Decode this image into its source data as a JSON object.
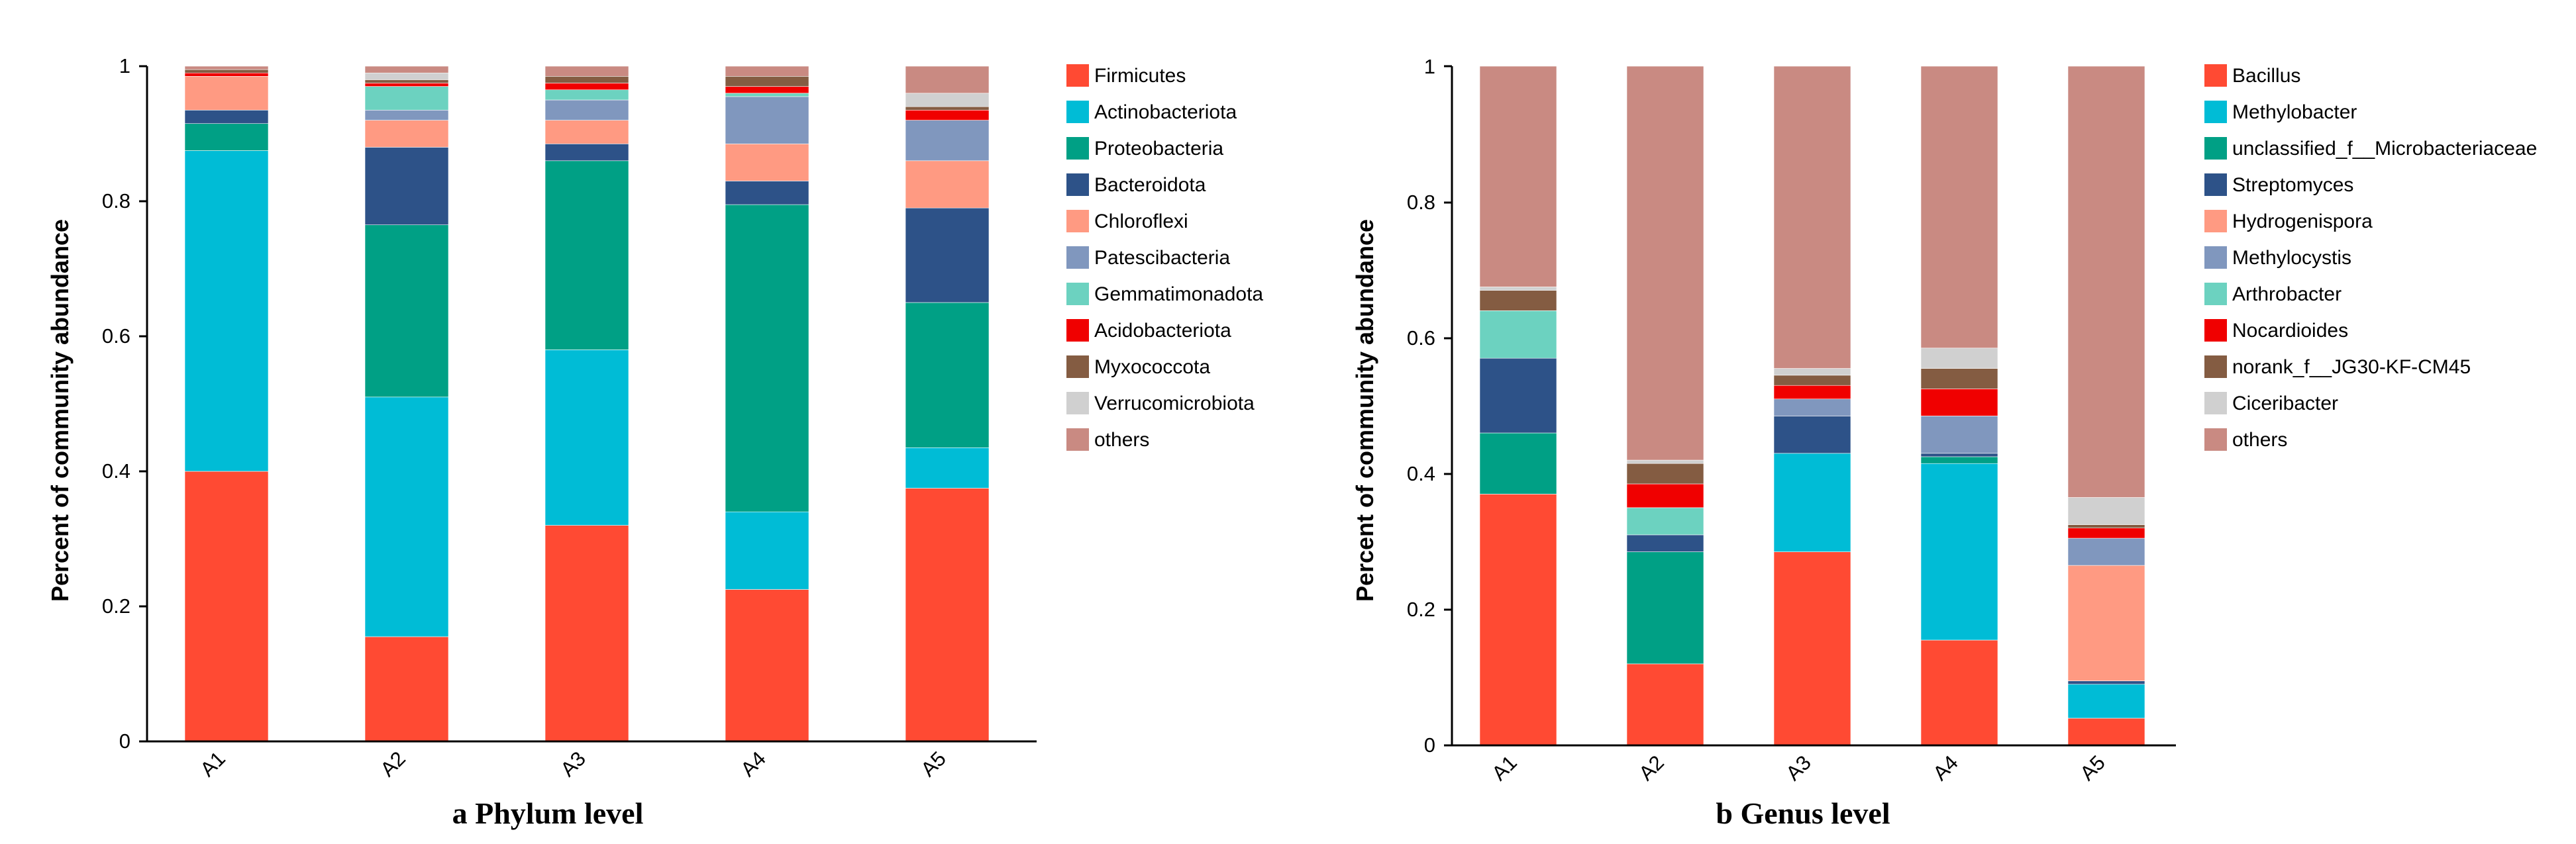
{
  "chart_data": [
    {
      "type": "bar",
      "stacked": true,
      "title": "a Phylum level",
      "xlabel": "",
      "ylabel": "Percent of community abundance",
      "ylim": [
        0,
        1
      ],
      "yticks": [
        "0",
        "0.2",
        "0.4",
        "0.6",
        "0.8",
        "1"
      ],
      "categories": [
        "A1",
        "A2",
        "A3",
        "A4",
        "A5"
      ],
      "legend_position": "right",
      "series": [
        {
          "name": "Firmicutes",
          "color": "#FF4A33",
          "values": [
            0.4,
            0.155,
            0.32,
            0.225,
            0.375
          ]
        },
        {
          "name": "Actinobacteriota",
          "color": "#00BCD6",
          "values": [
            0.475,
            0.355,
            0.26,
            0.115,
            0.06
          ]
        },
        {
          "name": "Proteobacteria",
          "color": "#00A085",
          "values": [
            0.04,
            0.255,
            0.28,
            0.455,
            0.215
          ]
        },
        {
          "name": "Bacteroidota",
          "color": "#2D5288",
          "values": [
            0.02,
            0.115,
            0.025,
            0.035,
            0.14
          ]
        },
        {
          "name": "Chloroflexi",
          "color": "#FF9A82",
          "values": [
            0.05,
            0.04,
            0.035,
            0.055,
            0.07
          ]
        },
        {
          "name": "Patescibacteria",
          "color": "#8097BE",
          "values": [
            0.0,
            0.015,
            0.03,
            0.07,
            0.06
          ]
        },
        {
          "name": "Gemmatimonadota",
          "color": "#6CD2C0",
          "values": [
            0.0,
            0.035,
            0.015,
            0.005,
            0.0
          ]
        },
        {
          "name": "Acidobacteriota",
          "color": "#F00000",
          "values": [
            0.005,
            0.005,
            0.01,
            0.01,
            0.015
          ]
        },
        {
          "name": "Myxococcota",
          "color": "#845C42",
          "values": [
            0.005,
            0.005,
            0.01,
            0.015,
            0.005
          ]
        },
        {
          "name": "Verrucomicrobiota",
          "color": "#D0D0D0",
          "values": [
            0.0,
            0.01,
            0.0,
            0.0,
            0.02
          ]
        },
        {
          "name": "others",
          "color": "#C98A82",
          "values": [
            0.005,
            0.01,
            0.015,
            0.015,
            0.04
          ]
        }
      ]
    },
    {
      "type": "bar",
      "stacked": true,
      "title": "b Genus level",
      "xlabel": "",
      "ylabel": "Percent of community abundance",
      "ylim": [
        0,
        1
      ],
      "yticks": [
        "0",
        "0.2",
        "0.4",
        "0.6",
        "0.8",
        "1"
      ],
      "categories": [
        "A1",
        "A2",
        "A3",
        "A4",
        "A5"
      ],
      "legend_position": "right",
      "series": [
        {
          "name": "Bacillus",
          "color": "#FF4A33",
          "values": [
            0.37,
            0.12,
            0.285,
            0.155,
            0.04
          ]
        },
        {
          "name": "Methylobacter",
          "color": "#00BCD6",
          "values": [
            0.0,
            0.0,
            0.145,
            0.26,
            0.05
          ]
        },
        {
          "name": "unclassified_f__Microbacteriaceae",
          "color": "#00A085",
          "values": [
            0.09,
            0.165,
            0.0,
            0.01,
            0.0
          ]
        },
        {
          "name": "Streptomyces",
          "color": "#2D5288",
          "values": [
            0.11,
            0.025,
            0.055,
            0.005,
            0.005
          ]
        },
        {
          "name": "Hydrogenispora",
          "color": "#FF9A82",
          "values": [
            0.0,
            0.0,
            0.0,
            0.0,
            0.17
          ]
        },
        {
          "name": "Methylocystis",
          "color": "#8097BE",
          "values": [
            0.0,
            0.0,
            0.025,
            0.055,
            0.04
          ]
        },
        {
          "name": "Arthrobacter",
          "color": "#6CD2C0",
          "values": [
            0.07,
            0.04,
            0.0,
            0.0,
            0.0
          ]
        },
        {
          "name": "Nocardioides",
          "color": "#F00000",
          "values": [
            0.0,
            0.035,
            0.02,
            0.04,
            0.015
          ]
        },
        {
          "name": "norank_f__JG30-KF-CM45",
          "color": "#845C42",
          "values": [
            0.03,
            0.03,
            0.015,
            0.03,
            0.005
          ]
        },
        {
          "name": "Ciceribacter",
          "color": "#D0D0D0",
          "values": [
            0.005,
            0.005,
            0.01,
            0.03,
            0.04
          ]
        },
        {
          "name": "others",
          "color": "#C98A82",
          "values": [
            0.325,
            0.58,
            0.445,
            0.415,
            0.635
          ]
        }
      ]
    }
  ]
}
